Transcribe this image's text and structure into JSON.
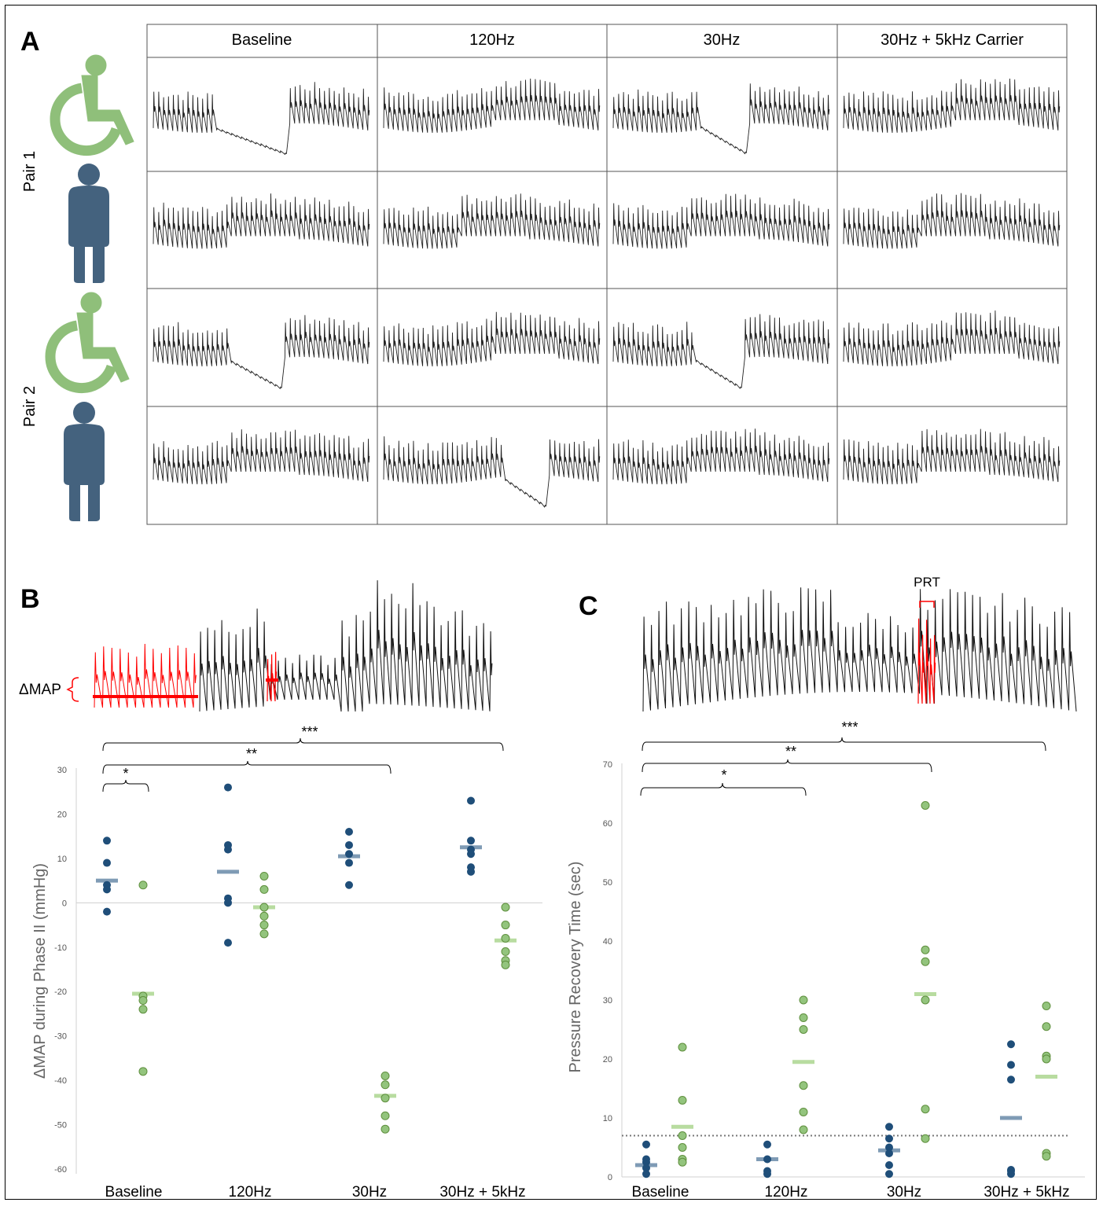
{
  "panel_labels": {
    "a": "A",
    "b": "B",
    "c": "C"
  },
  "panel_a": {
    "columns": [
      "Baseline",
      "120Hz",
      "30Hz",
      "30Hz + 5kHz Carrier"
    ],
    "pairs": [
      "Pair 1",
      "Pair 2"
    ]
  },
  "panel_b": {
    "trace_annotation": "ΔMAP",
    "significance": [
      "*",
      "**",
      "***"
    ]
  },
  "panel_c": {
    "trace_annotation": "PRT",
    "significance": [
      "*",
      "**",
      "***"
    ]
  },
  "colors": {
    "sci_dot": "#1f4e79",
    "sci_mean": "#7f9bb5",
    "ctrl_dot_fill": "#93c47d",
    "ctrl_dot_stroke": "#5f8f3e",
    "ctrl_mean": "#b8dca0",
    "wheelchair_icon": "#8fbf7a",
    "person_icon": "#44627e",
    "highlight": "#ff0000"
  },
  "chart_data": [
    {
      "type": "scatter",
      "panel": "B",
      "ylabel": "ΔMAP during Phase II (mmHg)",
      "categories": [
        "Baseline",
        "120Hz",
        "30Hz",
        "30Hz + 5kHz"
      ],
      "ylim": [
        -60,
        30
      ],
      "yticks": [
        30,
        20,
        10,
        0,
        -10,
        -20,
        -30,
        -40,
        -50,
        -60
      ],
      "grid": false,
      "series": [
        {
          "values": [
            [
              14,
              9,
              4,
              3,
              -2
            ],
            [
              26,
              13,
              12,
              1,
              0,
              -9
            ],
            [
              16,
              13,
              11,
              9,
              4
            ],
            [
              23,
              14,
              12,
              11,
              8,
              7
            ]
          ],
          "means": [
            5,
            7,
            10.5,
            12.5
          ]
        },
        {
          "values": [
            [
              4,
              -21,
              -22,
              -24,
              -38
            ],
            [
              6,
              3,
              -1,
              -3,
              -5,
              -7
            ],
            [
              -39,
              -41,
              -44,
              -48,
              -51
            ],
            [
              -1,
              -5,
              -8,
              -11,
              -13,
              -14
            ]
          ],
          "means": [
            -20.5,
            -1,
            -43.5,
            -8.5
          ]
        }
      ],
      "brackets": [
        {
          "from": "Baseline",
          "to": "Baseline",
          "label": "*"
        },
        {
          "from": "Baseline",
          "to": "30Hz",
          "label": "**"
        },
        {
          "from": "Baseline",
          "to": "30Hz + 5kHz",
          "label": "***"
        }
      ]
    },
    {
      "type": "scatter",
      "panel": "C",
      "ylabel": "Pressure Recovery Time (sec)",
      "categories": [
        "Baseline",
        "120Hz",
        "30Hz",
        "30Hz + 5kHz"
      ],
      "ylim": [
        0,
        70
      ],
      "yticks": [
        70,
        60,
        50,
        40,
        30,
        20,
        10,
        0
      ],
      "grid": false,
      "reference_line": 7,
      "series": [
        {
          "values": [
            [
              5.5,
              3,
              2.5,
              1.5,
              0.5
            ],
            [
              5.5,
              3,
              1,
              0.5
            ],
            [
              8.5,
              6.5,
              5,
              4,
              2,
              0.5
            ],
            [
              22.5,
              19,
              16.5,
              1.2,
              1,
              0.5
            ]
          ],
          "means": [
            2,
            3,
            4.5,
            10
          ]
        },
        {
          "values": [
            [
              22,
              13,
              7,
              5,
              3,
              2.5
            ],
            [
              30,
              27,
              25,
              15.5,
              11,
              8
            ],
            [
              63,
              38.5,
              36.5,
              30,
              11.5,
              6.5
            ],
            [
              29,
              25.5,
              20.5,
              20,
              4,
              3.5
            ]
          ],
          "means": [
            8.5,
            19.5,
            31,
            17
          ]
        }
      ],
      "brackets": [
        {
          "from": "Baseline",
          "to": "120Hz",
          "label": "*"
        },
        {
          "from": "Baseline",
          "to": "30Hz",
          "label": "**"
        },
        {
          "from": "Baseline",
          "to": "30Hz + 5kHz",
          "label": "***"
        }
      ]
    }
  ]
}
